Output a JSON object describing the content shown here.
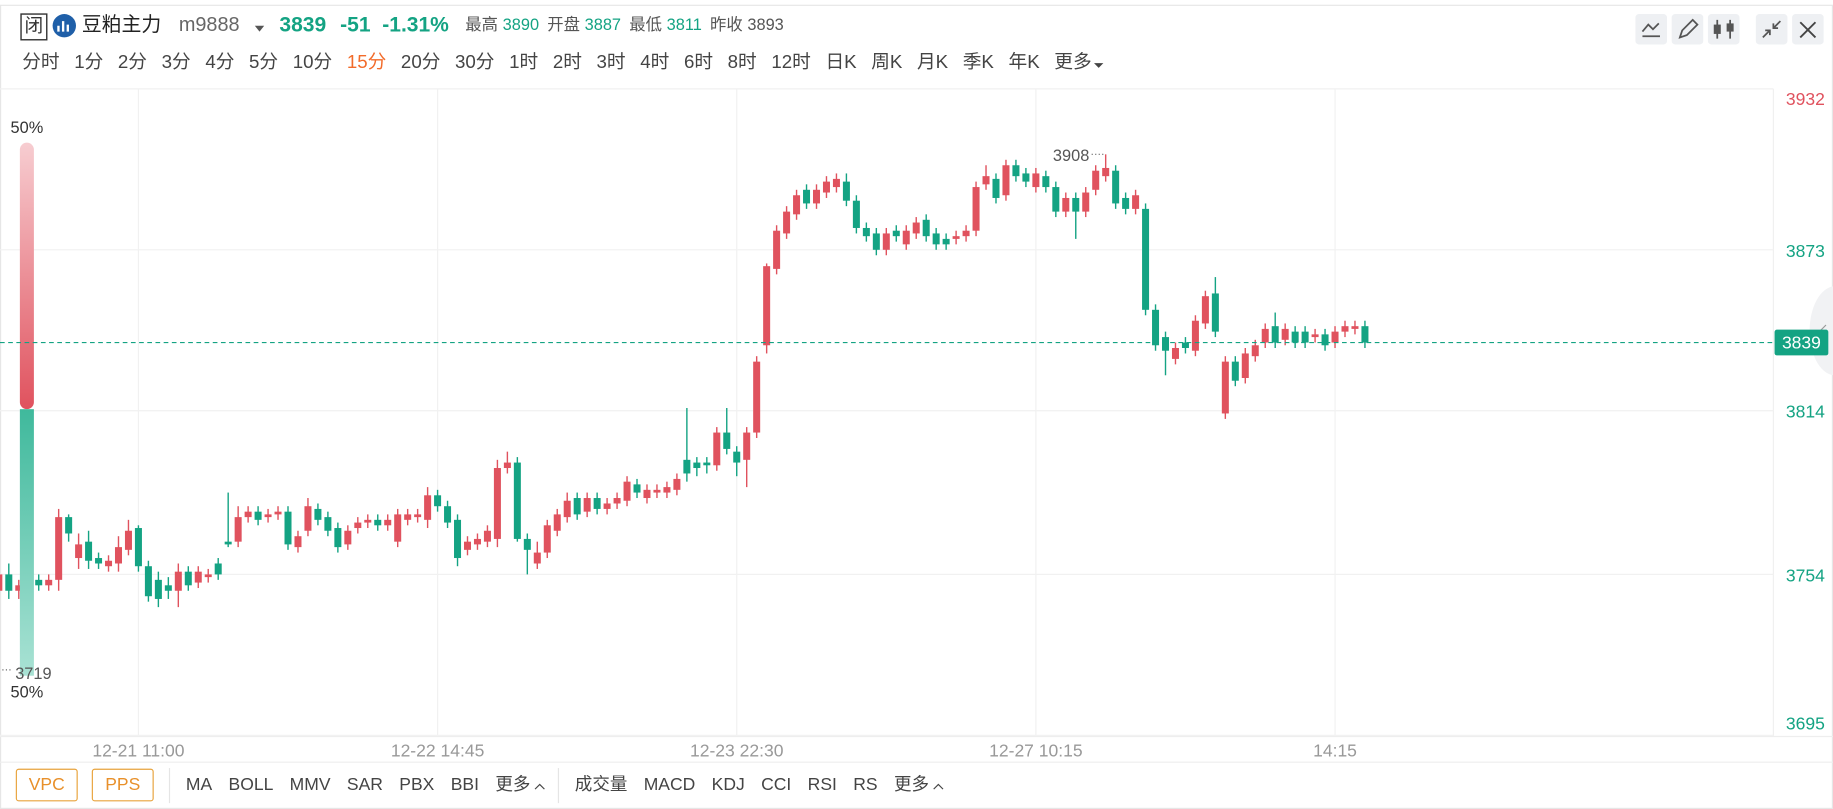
{
  "header": {
    "status_icon": "闭",
    "name": "豆粕主力",
    "code": "m9888"
  },
  "quote": {
    "last": 3839,
    "change": -51,
    "change_pct": {
      "value": -1.31,
      "label": "-1.31%"
    },
    "stats": [
      {
        "label": "最高",
        "value": 3890
      },
      {
        "label": "开盘",
        "value": 3887
      },
      {
        "label": "最低",
        "value": 3811
      },
      {
        "label": "昨收",
        "value": 3893
      }
    ]
  },
  "periods": [
    {
      "label": "分时"
    },
    {
      "label": "1分"
    },
    {
      "label": "2分"
    },
    {
      "label": "3分"
    },
    {
      "label": "4分"
    },
    {
      "label": "5分"
    },
    {
      "label": "10分"
    },
    {
      "label": "15分",
      "active": true
    },
    {
      "label": "20分"
    },
    {
      "label": "30分"
    },
    {
      "label": "1时"
    },
    {
      "label": "2时"
    },
    {
      "label": "3时"
    },
    {
      "label": "4时"
    },
    {
      "label": "6时"
    },
    {
      "label": "8时"
    },
    {
      "label": "12时"
    },
    {
      "label": "日K"
    },
    {
      "label": "周K"
    },
    {
      "label": "月K"
    },
    {
      "label": "季K"
    },
    {
      "label": "年K"
    }
  ],
  "periods_more": "更多",
  "bottom_toolbar": {
    "overlays": [
      "VPC",
      "PPS"
    ],
    "main": [
      "MA",
      "BOLL",
      "MMV",
      "SAR",
      "PBX",
      "BBI"
    ],
    "main_more": "更多",
    "sub": [
      "成交量",
      "MACD",
      "KDJ",
      "CCI",
      "RSI",
      "RS"
    ],
    "sub_more": "更多"
  },
  "chart_data": {
    "type": "candlestick",
    "categories": [
      null,
      null,
      null,
      null,
      null,
      null,
      null,
      null,
      null,
      null,
      null,
      null,
      null,
      null,
      "12-21 11:00",
      null,
      null,
      null,
      null,
      null,
      null,
      null,
      null,
      null,
      null,
      null,
      null,
      null,
      null,
      null,
      null,
      null,
      null,
      null,
      null,
      null,
      null,
      null,
      null,
      null,
      null,
      null,
      null,
      null,
      "12-22 14:45",
      null,
      null,
      null,
      null,
      null,
      null,
      null,
      null,
      null,
      null,
      null,
      null,
      null,
      null,
      null,
      null,
      null,
      null,
      null,
      null,
      null,
      null,
      null,
      null,
      null,
      null,
      null,
      null,
      null,
      "12-23 22:30",
      null,
      null,
      null,
      null,
      null,
      null,
      null,
      null,
      null,
      null,
      null,
      null,
      null,
      null,
      null,
      null,
      null,
      null,
      null,
      null,
      null,
      null,
      null,
      null,
      null,
      null,
      null,
      null,
      null,
      "12-27 10:15",
      null,
      null,
      null,
      null,
      null,
      null,
      null,
      null,
      null,
      null,
      null,
      null,
      null,
      null,
      null,
      null,
      null,
      null,
      null,
      null,
      null,
      null,
      null,
      null,
      null,
      null,
      null,
      null,
      null,
      "14:15",
      null,
      null,
      null
    ],
    "open": [
      3748,
      3754,
      3748,
      3750,
      3752,
      3750,
      3752,
      3775,
      3760,
      3766,
      3760,
      3757,
      3758,
      3763,
      3771,
      3757,
      3752,
      3750,
      3748,
      3755,
      3751,
      3753,
      3758,
      3766,
      3766,
      3775,
      3777,
      3775,
      3776,
      3777,
      3764,
      3770,
      3778,
      3775,
      3771,
      3765,
      3771,
      3773,
      3774,
      3772,
      3766,
      3774,
      3775,
      3774,
      3783,
      3779,
      3774,
      3763,
      3765,
      3766,
      3767,
      3793,
      3795,
      3767,
      3758,
      3762,
      3770,
      3775,
      3782,
      3777,
      3782,
      3778,
      3780,
      3781,
      3787,
      3782,
      3784,
      3784,
      3785,
      3796,
      3795,
      3795,
      3794,
      3806,
      3799,
      3796,
      3806,
      3838,
      3866,
      3879,
      3886,
      3895,
      3890,
      3894,
      3896,
      3898,
      3891,
      3881,
      3879,
      3873,
      3880,
      3875,
      3879,
      3884,
      3879,
      3877,
      3877,
      3878,
      3880,
      3897,
      3899,
      3893,
      3904,
      3901,
      3896,
      3900,
      3896,
      3887,
      3892,
      3887,
      3895,
      3900,
      3902,
      3892,
      3888,
      3888,
      3851,
      3841,
      3833,
      3839,
      3836,
      3846,
      3857,
      3813,
      3832,
      3826,
      3834,
      3839,
      3845,
      3840,
      3843,
      3843,
      3841,
      3842,
      3839,
      3843,
      3844,
      3845
    ],
    "high": [
      3757,
      3758,
      3752,
      3754,
      3754,
      3754,
      3778,
      3776,
      3769,
      3770,
      3762,
      3761,
      3768,
      3774,
      3772,
      3759,
      3755,
      3753,
      3758,
      3757,
      3757,
      3756,
      3760,
      3784,
      3779,
      3779,
      3779,
      3778,
      3779,
      3779,
      3770,
      3782,
      3780,
      3777,
      3773,
      3772,
      3775,
      3776,
      3776,
      3776,
      3778,
      3778,
      3778,
      3786,
      3785,
      3781,
      3776,
      3768,
      3769,
      3772,
      3796,
      3799,
      3797,
      3769,
      3766,
      3774,
      3778,
      3784,
      3784,
      3784,
      3784,
      3782,
      3784,
      3790,
      3789,
      3787,
      3787,
      3788,
      3791,
      3815,
      3797,
      3797,
      3808,
      3815,
      3801,
      3808,
      3834,
      3868,
      3882,
      3889,
      3895,
      3897,
      3897,
      3900,
      3901,
      3901,
      3893,
      3883,
      3881,
      3881,
      3882,
      3882,
      3885,
      3886,
      3881,
      3879,
      3880,
      3882,
      3898,
      3904,
      3901,
      3906,
      3906,
      3903,
      3903,
      3902,
      3898,
      3894,
      3894,
      3896,
      3904,
      3908,
      3904,
      3894,
      3895,
      3890,
      3853,
      3843,
      3839,
      3841,
      3849,
      3858,
      3863,
      3834,
      3834,
      3837,
      3840,
      3846,
      3850,
      3846,
      3845,
      3845,
      3844,
      3844,
      3845,
      3847,
      3847,
      3847
    ],
    "low": [
      3719,
      3745,
      3745,
      3748,
      3748,
      3748,
      3748,
      3766,
      3756,
      3756,
      3756,
      3755,
      3755,
      3761,
      3755,
      3744,
      3742,
      3745,
      3742,
      3748,
      3749,
      3751,
      3752,
      3764,
      3764,
      3773,
      3772,
      3773,
      3774,
      3763,
      3762,
      3768,
      3772,
      3768,
      3762,
      3763,
      3769,
      3771,
      3770,
      3770,
      3764,
      3772,
      3773,
      3771,
      3777,
      3771,
      3757,
      3761,
      3763,
      3764,
      3764,
      3791,
      3766,
      3754,
      3756,
      3760,
      3768,
      3773,
      3774,
      3775,
      3776,
      3776,
      3778,
      3779,
      3782,
      3780,
      3782,
      3782,
      3783,
      3788,
      3790,
      3791,
      3792,
      3798,
      3790,
      3786,
      3804,
      3835,
      3864,
      3877,
      3884,
      3888,
      3888,
      3892,
      3894,
      3889,
      3879,
      3876,
      3871,
      3871,
      3876,
      3873,
      3877,
      3876,
      3873,
      3873,
      3875,
      3876,
      3878,
      3895,
      3890,
      3891,
      3898,
      3896,
      3894,
      3894,
      3885,
      3885,
      3877,
      3885,
      3893,
      3898,
      3888,
      3886,
      3886,
      3849,
      3836,
      3827,
      3831,
      3835,
      3834,
      3844,
      3841,
      3811,
      3823,
      3824,
      3832,
      3837,
      3837,
      3838,
      3837,
      3837,
      3839,
      3836,
      3837,
      3841,
      3842,
      3837
    ],
    "close": [
      3754,
      3748,
      3750,
      3752,
      3750,
      3752,
      3775,
      3769,
      3765,
      3759,
      3758,
      3759,
      3764,
      3770,
      3757,
      3746,
      3745,
      3748,
      3755,
      3750,
      3755,
      3754,
      3754,
      3765,
      3775,
      3777,
      3774,
      3776,
      3777,
      3765,
      3768,
      3779,
      3774,
      3770,
      3764,
      3770,
      3773,
      3774,
      3772,
      3774,
      3776,
      3776,
      3776,
      3783,
      3779,
      3773,
      3760,
      3766,
      3767,
      3770,
      3793,
      3795,
      3767,
      3763,
      3762,
      3772,
      3776,
      3781,
      3776,
      3782,
      3778,
      3780,
      3782,
      3788,
      3784,
      3785,
      3785,
      3786,
      3789,
      3791,
      3793,
      3794,
      3806,
      3800,
      3795,
      3806,
      3832,
      3867,
      3880,
      3887,
      3893,
      3890,
      3895,
      3898,
      3899,
      3891,
      3881,
      3878,
      3873,
      3879,
      3878,
      3880,
      3883,
      3878,
      3875,
      3875,
      3878,
      3880,
      3896,
      3900,
      3892,
      3904,
      3900,
      3898,
      3901,
      3896,
      3887,
      3892,
      3887,
      3894,
      3902,
      3903,
      3890,
      3888,
      3893,
      3851,
      3838,
      3836,
      3837,
      3837,
      3847,
      3856,
      3843,
      3832,
      3825,
      3835,
      3838,
      3844,
      3839,
      3844,
      3839,
      3839,
      3842,
      3838,
      3843,
      3845,
      3845,
      3839
    ],
    "up_color": "#e0525e",
    "down_color": "#14a383",
    "ylim": [
      3695,
      3932
    ],
    "yticks": [
      3932,
      3873,
      3814,
      3754,
      3695
    ],
    "grid": true,
    "ratio_bar": {
      "top": {
        "value": 50,
        "label": "50%"
      },
      "bottom": {
        "value": 50,
        "label": "50%"
      }
    }
  }
}
